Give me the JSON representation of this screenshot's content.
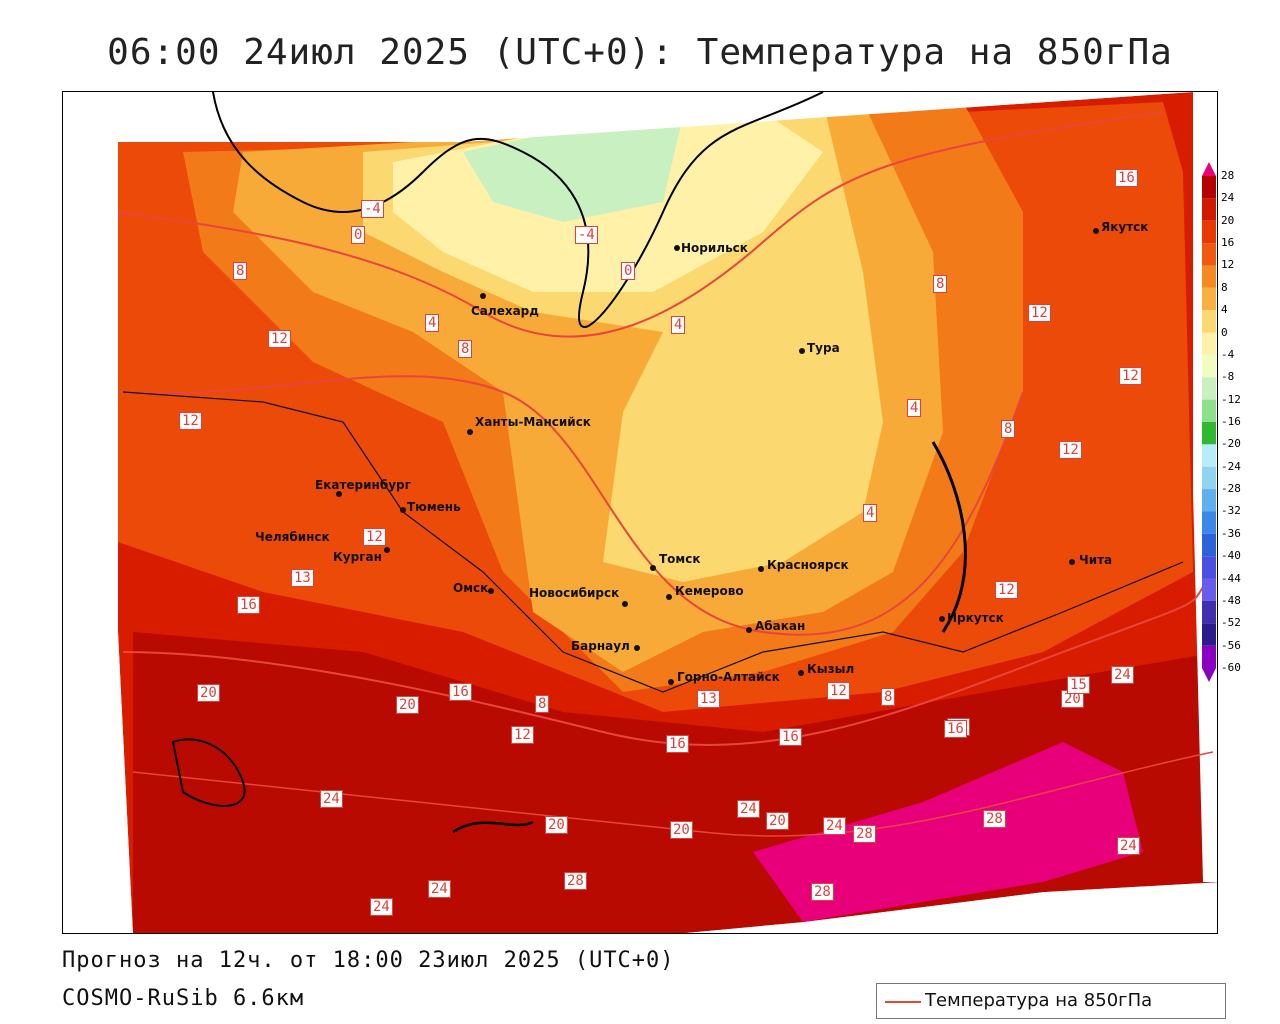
{
  "title": "06:00 24июл 2025 (UTC+0): Температура на 850гПа",
  "footer": {
    "forecast": "Прогноз на 12ч. от 18:00 23июл 2025 (UTC+0)",
    "model": "COSMO-RuSib 6.6км"
  },
  "legend": {
    "label": "Температура на 850гПа",
    "line_color": "#e8453c"
  },
  "color_scale": {
    "levels": [
      "28",
      "24",
      "20",
      "16",
      "12",
      "8",
      "4",
      "0",
      "-4",
      "-8",
      "-12",
      "-16",
      "-20",
      "-24",
      "-28",
      "-32",
      "-36",
      "-40",
      "-44",
      "-48",
      "-52",
      "-56",
      "-60"
    ],
    "colors": [
      "#e8007a",
      "#b40000",
      "#d01a00",
      "#e83a00",
      "#f05a10",
      "#f58a20",
      "#f8b040",
      "#fcd870",
      "#fff2a8",
      "#f2fbc0",
      "#c8f0c0",
      "#8ee08a",
      "#30b830",
      "#b8ecf8",
      "#90d4f2",
      "#60b0ee",
      "#3c88e6",
      "#2a64d8",
      "#4a50e0",
      "#6a5cea",
      "#4030b0",
      "#2a1c8c",
      "#8a00c0"
    ]
  },
  "cities": [
    {
      "name": "Норильск",
      "dot": "norilsk"
    },
    {
      "name": "Якутск",
      "dot": "yakutsk"
    },
    {
      "name": "Салехард",
      "dot": "salekhard"
    },
    {
      "name": "Тура",
      "dot": "tura"
    },
    {
      "name": "Ханты-Мансийск",
      "dot": "khanty"
    },
    {
      "name": "Екатеринбург",
      "dot": "ekb"
    },
    {
      "name": "Тюмень",
      "dot": "tyumen"
    },
    {
      "name": "Челябинск",
      "dot": "chelyabinsk"
    },
    {
      "name": "Курган",
      "dot": "kurgan"
    },
    {
      "name": "Омск",
      "dot": "omsk"
    },
    {
      "name": "Новосибирск",
      "dot": "nsk"
    },
    {
      "name": "Томск",
      "dot": "tomsk"
    },
    {
      "name": "Кемерово",
      "dot": "kemerovo"
    },
    {
      "name": "Барнаул",
      "dot": "barnaul"
    },
    {
      "name": "Горно-Алтайск",
      "dot": "gorno"
    },
    {
      "name": "Абакан",
      "dot": "abakan"
    },
    {
      "name": "Кызыл",
      "dot": "kyzyl"
    },
    {
      "name": "Красноярск",
      "dot": "krasnoyarsk"
    },
    {
      "name": "Иркутск",
      "dot": "irkutsk"
    },
    {
      "name": "Чита",
      "dot": "chita"
    }
  ],
  "isoline_labels": [
    "16",
    "-4",
    "0",
    "-4",
    "8",
    "0",
    "4",
    "12",
    "4",
    "8",
    "12",
    "8",
    "12",
    "12",
    "4",
    "8",
    "12",
    "4",
    "12",
    "12",
    "13",
    "16",
    "20",
    "20",
    "16",
    "8",
    "12",
    "16",
    "16",
    "13",
    "12",
    "8",
    "16",
    "24",
    "20",
    "15",
    "24",
    "20",
    "20",
    "24",
    "20",
    "24",
    "28",
    "28",
    "24",
    "28",
    "28",
    "24",
    "24",
    "16"
  ]
}
